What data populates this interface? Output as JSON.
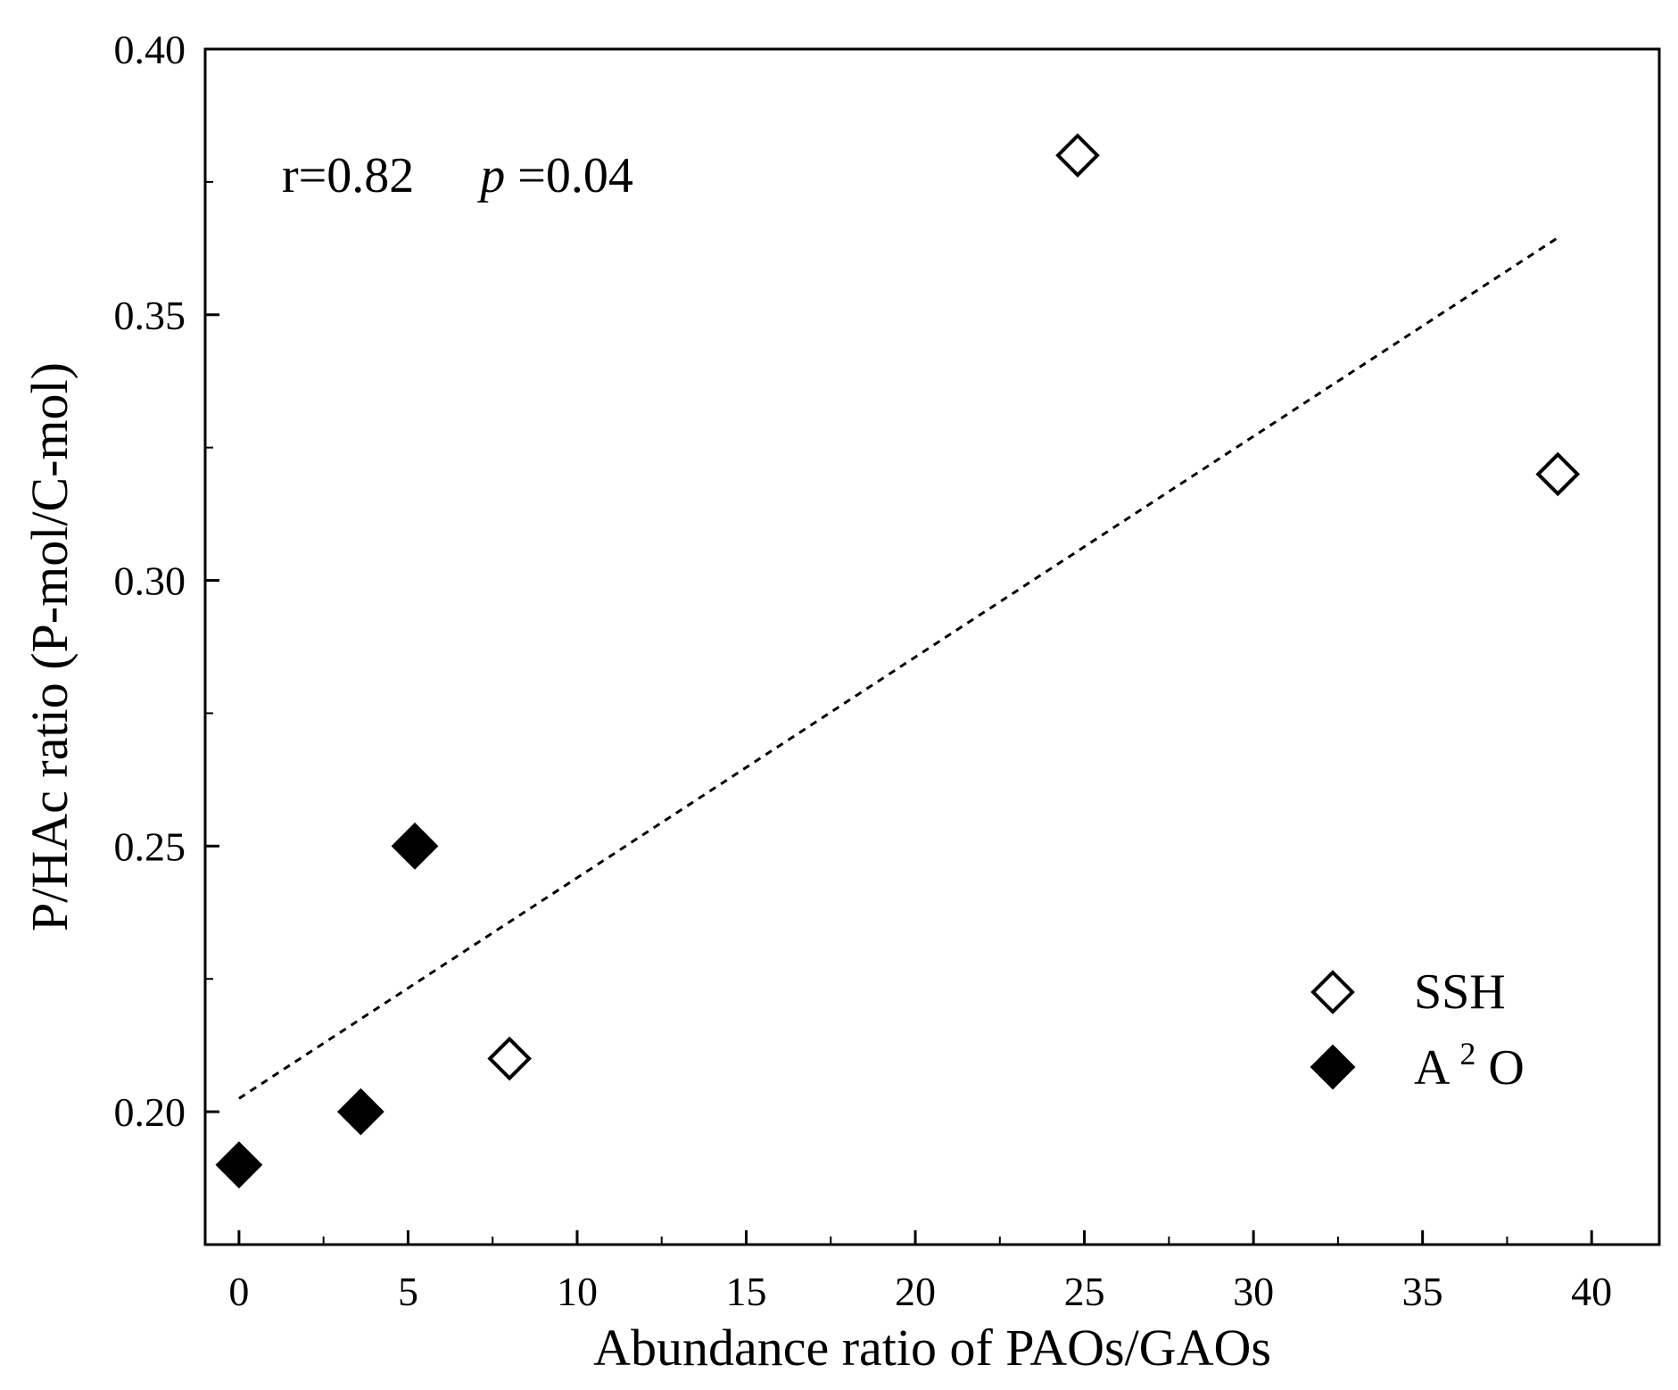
{
  "chart_data": {
    "type": "scatter",
    "title": "",
    "xlabel": "Abundance ratio of PAOs/GAOs",
    "ylabel": "P/HAc ratio (P-mol/C-mol)",
    "xlim": [
      -1,
      42
    ],
    "ylim": [
      0.175,
      0.4
    ],
    "x_ticks": [
      0,
      5,
      10,
      15,
      20,
      25,
      30,
      35,
      40
    ],
    "x_tick_labels": [
      "0",
      "5",
      "10",
      "15",
      "20",
      "25",
      "30",
      "35",
      "40"
    ],
    "y_ticks": [
      0.2,
      0.25,
      0.3,
      0.35,
      0.4
    ],
    "y_tick_labels": [
      "0.20",
      "0.25",
      "0.30",
      "0.35",
      "0.40"
    ],
    "grid": false,
    "legend_position": "bottom-right",
    "annotation": {
      "r_text": "r=0.82",
      "p_symbol": "p",
      "p_value_text": "=0.04"
    },
    "series": [
      {
        "name": "SSH",
        "legend_label": "SSH",
        "marker": "diamond-open",
        "x": [
          8,
          24.8,
          39
        ],
        "y": [
          0.21,
          0.38,
          0.32
        ]
      },
      {
        "name": "A2O",
        "legend_label_base": "A",
        "legend_label_sup": "2",
        "legend_label_end": "O",
        "marker": "diamond-filled",
        "x": [
          0,
          3.6,
          5.2
        ],
        "y": [
          0.19,
          0.2,
          0.25
        ]
      }
    ],
    "trendline": {
      "style": "dashed",
      "x": [
        0,
        39
      ],
      "y": [
        0.2025,
        0.3645
      ]
    }
  }
}
